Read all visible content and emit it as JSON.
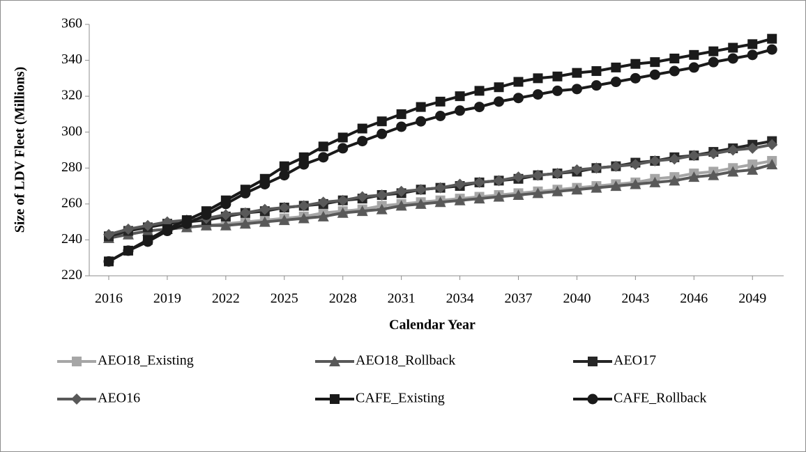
{
  "chart_data": {
    "type": "line",
    "x_label": "Calendar Year",
    "y_label": "Size of LDV Fleet (Millions)",
    "x": [
      2016,
      2017,
      2018,
      2019,
      2020,
      2021,
      2022,
      2023,
      2024,
      2025,
      2026,
      2027,
      2028,
      2029,
      2030,
      2031,
      2032,
      2033,
      2034,
      2035,
      2036,
      2037,
      2038,
      2039,
      2040,
      2041,
      2042,
      2043,
      2044,
      2045,
      2046,
      2047,
      2048,
      2049,
      2050
    ],
    "xlim": [
      2015,
      2050.6
    ],
    "xticks": [
      2016,
      2019,
      2022,
      2025,
      2028,
      2031,
      2034,
      2037,
      2040,
      2043,
      2046,
      2049
    ],
    "ylim": [
      220,
      360
    ],
    "yticks": [
      220,
      240,
      260,
      280,
      300,
      320,
      340,
      360
    ],
    "grid": false,
    "series": [
      {
        "name": "AEO18_Existing",
        "color": "#a6a6a6",
        "marker": "square",
        "values": [
          241,
          243,
          245,
          246,
          247,
          248,
          249,
          250,
          251,
          252,
          253,
          255,
          256,
          257,
          259,
          260,
          261,
          262,
          263,
          264,
          265,
          266,
          267,
          268,
          269,
          270,
          271,
          272,
          274,
          275,
          277,
          278,
          280,
          282,
          284
        ]
      },
      {
        "name": "AEO18_Rollback",
        "color": "#595959",
        "marker": "triangle",
        "values": [
          241,
          243,
          245,
          246,
          247,
          248,
          248,
          249,
          250,
          251,
          252,
          253,
          255,
          256,
          257,
          259,
          260,
          261,
          262,
          263,
          264,
          265,
          266,
          267,
          268,
          269,
          270,
          271,
          272,
          273,
          275,
          276,
          278,
          279,
          282
        ]
      },
      {
        "name": "AEO17",
        "color": "#262626",
        "marker": "square",
        "values": [
          242,
          245,
          247,
          249,
          250,
          251,
          253,
          255,
          256,
          258,
          259,
          260,
          262,
          263,
          265,
          266,
          268,
          269,
          270,
          272,
          273,
          274,
          276,
          277,
          278,
          280,
          281,
          283,
          284,
          286,
          287,
          289,
          291,
          293,
          295
        ]
      },
      {
        "name": "AEO16",
        "color": "#595959",
        "marker": "diamond",
        "values": [
          243,
          246,
          248,
          250,
          251,
          252,
          254,
          255,
          257,
          258,
          259,
          261,
          262,
          264,
          265,
          267,
          268,
          269,
          271,
          272,
          273,
          275,
          276,
          277,
          279,
          280,
          281,
          282,
          284,
          285,
          287,
          288,
          290,
          291,
          293
        ]
      },
      {
        "name": "CAFE_Existing",
        "color": "#1a1a1a",
        "marker": "square",
        "values": [
          228,
          234,
          240,
          246,
          251,
          256,
          262,
          268,
          274,
          281,
          286,
          292,
          297,
          302,
          306,
          310,
          314,
          317,
          320,
          323,
          325,
          328,
          330,
          331,
          333,
          334,
          336,
          338,
          339,
          341,
          343,
          345,
          347,
          349,
          352
        ]
      },
      {
        "name": "CAFE_Rollback",
        "color": "#1a1a1a",
        "marker": "circle",
        "values": [
          228,
          234,
          239,
          245,
          249,
          254,
          260,
          266,
          271,
          276,
          282,
          286,
          291,
          295,
          299,
          303,
          306,
          309,
          312,
          314,
          317,
          319,
          321,
          323,
          324,
          326,
          328,
          330,
          332,
          334,
          336,
          339,
          341,
          343,
          346
        ]
      }
    ]
  }
}
